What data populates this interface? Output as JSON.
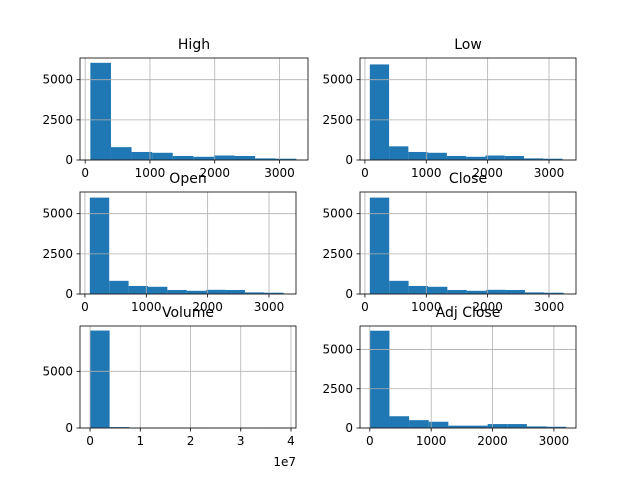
{
  "chart_data": [
    {
      "type": "bar",
      "title": "High",
      "x": {
        "bin_start": 80,
        "bin_width": 318,
        "ticks": [
          0,
          1000,
          2000,
          3000
        ],
        "range": [
          -80,
          3440
        ]
      },
      "values": [
        6050,
        800,
        500,
        450,
        250,
        200,
        280,
        250,
        100,
        80
      ],
      "y": {
        "ticks": [
          0,
          2500,
          5000
        ],
        "range": [
          0,
          6350
        ]
      },
      "grid": true
    },
    {
      "type": "bar",
      "title": "Low",
      "x": {
        "bin_start": 80,
        "bin_width": 314,
        "ticks": [
          0,
          1000,
          2000,
          3000
        ],
        "range": [
          -80,
          3440
        ]
      },
      "values": [
        5950,
        850,
        500,
        450,
        250,
        200,
        280,
        250,
        100,
        80
      ],
      "y": {
        "ticks": [
          0,
          2500,
          5000
        ],
        "range": [
          0,
          6350
        ]
      },
      "grid": true
    },
    {
      "type": "bar",
      "title": "Open",
      "x": {
        "bin_start": 80,
        "bin_width": 316,
        "ticks": [
          0,
          1000,
          2000,
          3000
        ],
        "range": [
          -80,
          3440
        ]
      },
      "values": [
        6000,
        820,
        500,
        450,
        250,
        200,
        260,
        250,
        100,
        80
      ],
      "y": {
        "ticks": [
          0,
          2500,
          5000
        ],
        "range": [
          0,
          6350
        ]
      },
      "grid": true
    },
    {
      "type": "bar",
      "title": "Close",
      "x": {
        "bin_start": 80,
        "bin_width": 316,
        "ticks": [
          0,
          1000,
          2000,
          3000
        ],
        "range": [
          -80,
          3440
        ]
      },
      "values": [
        6000,
        820,
        500,
        450,
        250,
        200,
        260,
        250,
        100,
        80
      ],
      "y": {
        "ticks": [
          0,
          2500,
          5000
        ],
        "range": [
          0,
          6350
        ]
      },
      "grid": true
    },
    {
      "type": "bar",
      "title": "Volume",
      "x": {
        "bin_start": 0,
        "bin_width": 3900000,
        "ticks": [
          0,
          1,
          2,
          3,
          4
        ],
        "tick_values": [
          0,
          10000000,
          20000000,
          30000000,
          40000000
        ],
        "range": [
          -2000000,
          41000000
        ],
        "offset_label": "1e7"
      },
      "values": [
        8600,
        80,
        5,
        2,
        1,
        1,
        0,
        0,
        0,
        1
      ],
      "y": {
        "ticks": [
          0,
          5000
        ],
        "range": [
          0,
          9000
        ]
      },
      "grid": true
    },
    {
      "type": "bar",
      "title": "Adj Close",
      "x": {
        "bin_start": 0,
        "bin_width": 320,
        "ticks": [
          0,
          1000,
          2000,
          3000
        ],
        "range": [
          -160,
          3360
        ]
      },
      "values": [
        6200,
        750,
        500,
        400,
        150,
        150,
        250,
        250,
        100,
        80
      ],
      "y": {
        "ticks": [
          0,
          2500,
          5000
        ],
        "range": [
          0,
          6500
        ]
      },
      "grid": true
    }
  ]
}
